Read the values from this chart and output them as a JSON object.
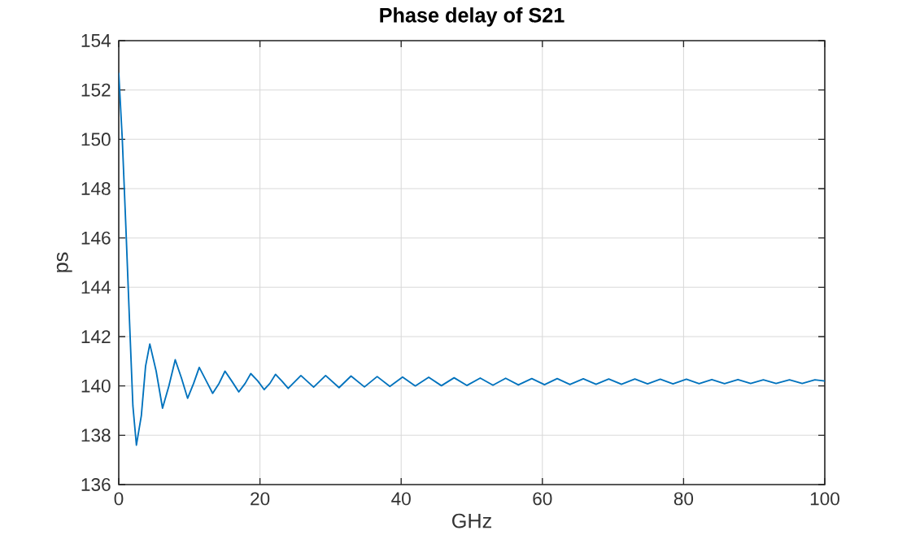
{
  "chart_data": {
    "type": "line",
    "title": "Phase delay of S21",
    "xlabel": "GHz",
    "ylabel": "ps",
    "xlim": [
      0,
      100
    ],
    "ylim": [
      136,
      154
    ],
    "xticks": [
      0,
      20,
      40,
      60,
      80,
      100
    ],
    "yticks": [
      136,
      138,
      140,
      142,
      144,
      146,
      148,
      150,
      152,
      154
    ],
    "grid": true,
    "marker": "none",
    "line_style": "solid",
    "x": [
      0,
      0.5,
      1.0,
      1.5,
      2.0,
      2.5,
      3.2,
      3.8,
      4.4,
      5.3,
      6.2,
      7.1,
      8.0,
      8.9,
      9.75,
      10.6,
      11.4,
      12.4,
      13.3,
      14.2,
      15.05,
      16.0,
      17.0,
      17.9,
      18.7,
      19.7,
      20.6,
      21.4,
      22.2,
      23.1,
      24.0,
      25.8,
      27.6,
      29.3,
      31.2,
      32.9,
      34.8,
      36.6,
      38.4,
      40.2,
      42.0,
      43.9,
      45.7,
      47.5,
      49.3,
      51.2,
      53.0,
      54.8,
      56.6,
      58.5,
      60.3,
      62.1,
      63.9,
      65.8,
      67.6,
      69.4,
      71.2,
      73.1,
      74.9,
      76.7,
      78.5,
      80.4,
      82.2,
      84.0,
      85.8,
      87.7,
      89.5,
      91.3,
      93.1,
      95.0,
      96.8,
      98.6,
      100
    ],
    "series": [
      {
        "color": "#0072bd",
        "values": [
          152.7,
          150.0,
          146.5,
          142.8,
          139.2,
          137.6,
          138.8,
          140.8,
          141.7,
          140.6,
          139.1,
          140.0,
          141.06,
          140.3,
          139.5,
          140.1,
          140.75,
          140.2,
          139.7,
          140.1,
          140.6,
          140.2,
          139.76,
          140.1,
          140.5,
          140.2,
          139.85,
          140.1,
          140.47,
          140.2,
          139.9,
          140.42,
          139.95,
          140.42,
          139.93,
          140.4,
          139.96,
          140.38,
          139.98,
          140.36,
          140.0,
          140.35,
          140.01,
          140.33,
          140.02,
          140.32,
          140.03,
          140.31,
          140.04,
          140.3,
          140.05,
          140.3,
          140.06,
          140.29,
          140.07,
          140.28,
          140.07,
          140.28,
          140.08,
          140.27,
          140.08,
          140.27,
          140.09,
          140.26,
          140.09,
          140.26,
          140.1,
          140.25,
          140.1,
          140.25,
          140.1,
          140.25,
          140.2
        ]
      }
    ]
  }
}
